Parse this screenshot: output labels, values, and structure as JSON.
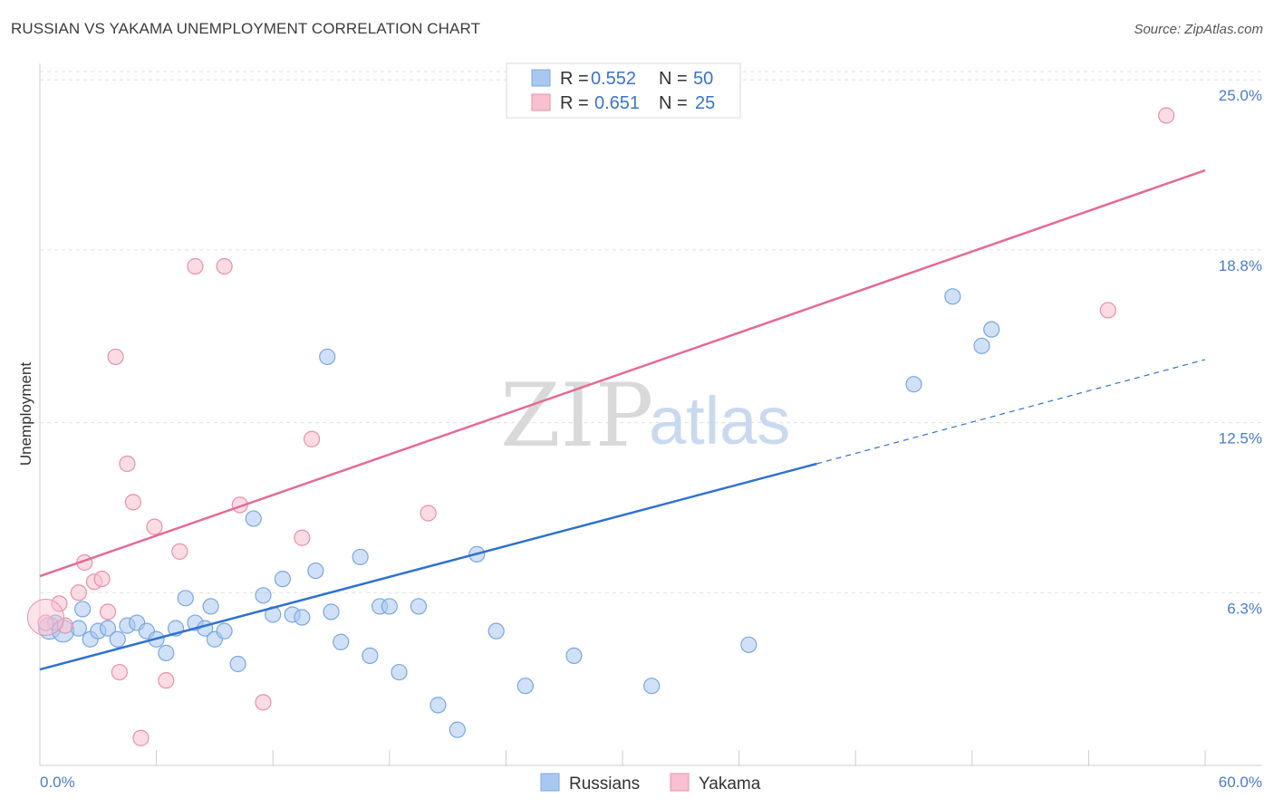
{
  "title": "RUSSIAN VS YAKAMA UNEMPLOYMENT CORRELATION CHART",
  "source": "Source: ZipAtlas.com",
  "watermark": {
    "zip": "ZIP",
    "atlas": "atlas"
  },
  "legend": {
    "rows": [
      {
        "r_label": "R =",
        "r_value": "0.552",
        "n_label": "N =",
        "n_value": "50",
        "color": "#a9c8f0",
        "border": "#7aa7e0"
      },
      {
        "r_label": "R =",
        "r_value": "0.651",
        "n_label": "N =",
        "n_value": "25",
        "color": "#f8c0d0",
        "border": "#e890ab"
      }
    ]
  },
  "bottom_legend": [
    {
      "label": "Russians",
      "color": "#a9c8f0",
      "border": "#7aa7e0"
    },
    {
      "label": "Yakama",
      "color": "#f8c0d0",
      "border": "#e890ab"
    }
  ],
  "chart_data": {
    "type": "scatter",
    "title": "RUSSIAN VS YAKAMA UNEMPLOYMENT CORRELATION CHART",
    "xlabel": "",
    "ylabel": "Unemployment",
    "xlim": [
      0,
      60
    ],
    "ylim": [
      0,
      25.6
    ],
    "x_tick_labels": [
      {
        "value": 0,
        "label": "0.0%"
      },
      {
        "value": 60,
        "label": "60.0%"
      }
    ],
    "y_tick_labels": [
      {
        "value": 6.3,
        "label": "6.3%"
      },
      {
        "value": 12.5,
        "label": "12.5%"
      },
      {
        "value": 18.8,
        "label": "18.8%"
      },
      {
        "value": 25.0,
        "label": "25.0%"
      }
    ],
    "grid": true,
    "legend_position": "top-center",
    "series": [
      {
        "name": "Russians",
        "color": "#a9c8f0",
        "line_color": "#2f72cc",
        "trend": {
          "x": [
            0,
            40
          ],
          "y": [
            3.5,
            11.0
          ],
          "dashed_extension_to_x": 60,
          "dashed_extension_y": 14.8
        },
        "points": [
          [
            0.5,
            5.0
          ],
          [
            0.8,
            5.2
          ],
          [
            1.2,
            4.9
          ],
          [
            2.0,
            5.0
          ],
          [
            2.2,
            5.7
          ],
          [
            2.6,
            4.6
          ],
          [
            3.0,
            4.9
          ],
          [
            3.5,
            5.0
          ],
          [
            4.0,
            4.6
          ],
          [
            4.5,
            5.1
          ],
          [
            5.0,
            5.2
          ],
          [
            5.5,
            4.9
          ],
          [
            6.0,
            4.6
          ],
          [
            6.5,
            4.1
          ],
          [
            7.0,
            5.0
          ],
          [
            7.5,
            6.1
          ],
          [
            8.0,
            5.2
          ],
          [
            8.5,
            5.0
          ],
          [
            8.8,
            5.8
          ],
          [
            9.0,
            4.6
          ],
          [
            9.5,
            4.9
          ],
          [
            10.2,
            3.7
          ],
          [
            11.0,
            9.0
          ],
          [
            11.5,
            6.2
          ],
          [
            12.0,
            5.5
          ],
          [
            12.5,
            6.8
          ],
          [
            13.0,
            5.5
          ],
          [
            13.5,
            5.4
          ],
          [
            14.2,
            7.1
          ],
          [
            14.8,
            14.9
          ],
          [
            15.0,
            5.6
          ],
          [
            15.5,
            4.5
          ],
          [
            16.5,
            7.6
          ],
          [
            17.0,
            4.0
          ],
          [
            17.5,
            5.8
          ],
          [
            18.0,
            5.8
          ],
          [
            18.5,
            3.4
          ],
          [
            19.5,
            5.8
          ],
          [
            20.5,
            2.2
          ],
          [
            21.5,
            1.3
          ],
          [
            22.5,
            7.7
          ],
          [
            23.5,
            4.9
          ],
          [
            25.0,
            2.9
          ],
          [
            27.5,
            4.0
          ],
          [
            31.5,
            2.9
          ],
          [
            36.5,
            4.4
          ],
          [
            45.0,
            13.9
          ],
          [
            47.0,
            17.1
          ],
          [
            48.5,
            15.3
          ],
          [
            49.0,
            15.9
          ]
        ]
      },
      {
        "name": "Yakama",
        "color": "#f8c0d0",
        "line_color": "#e36b94",
        "trend": {
          "x": [
            0,
            60
          ],
          "y": [
            6.9,
            21.7
          ]
        },
        "points": [
          [
            0.3,
            5.2
          ],
          [
            1.0,
            5.9
          ],
          [
            1.3,
            5.1
          ],
          [
            2.0,
            6.3
          ],
          [
            2.3,
            7.4
          ],
          [
            2.8,
            6.7
          ],
          [
            3.2,
            6.8
          ],
          [
            3.5,
            5.6
          ],
          [
            3.9,
            14.9
          ],
          [
            4.1,
            3.4
          ],
          [
            4.5,
            11.0
          ],
          [
            4.8,
            9.6
          ],
          [
            5.2,
            1.0
          ],
          [
            5.9,
            8.7
          ],
          [
            6.5,
            3.1
          ],
          [
            7.2,
            7.8
          ],
          [
            8.0,
            18.2
          ],
          [
            9.5,
            18.2
          ],
          [
            10.3,
            9.5
          ],
          [
            11.5,
            2.3
          ],
          [
            13.5,
            8.3
          ],
          [
            14.0,
            11.9
          ],
          [
            20.0,
            9.2
          ],
          [
            55.0,
            16.6
          ],
          [
            58.0,
            23.7
          ]
        ]
      }
    ]
  }
}
